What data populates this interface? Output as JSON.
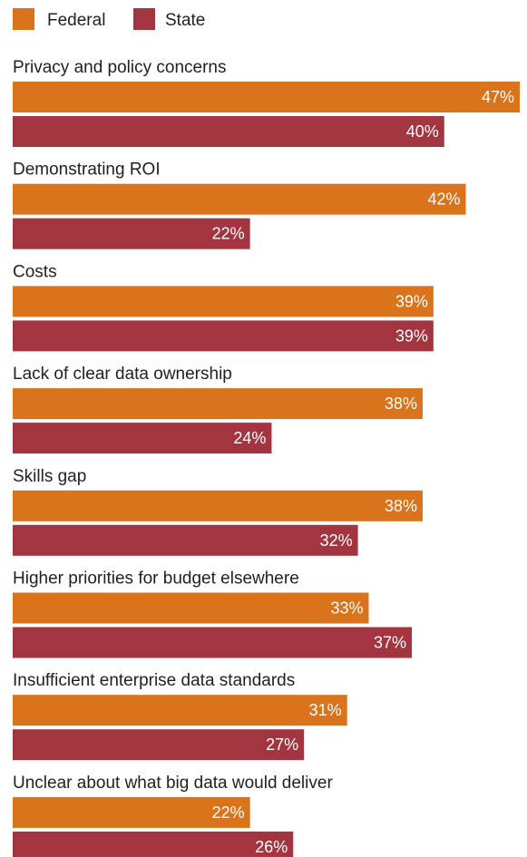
{
  "legend": {
    "federal": "Federal",
    "state": "State"
  },
  "colors": {
    "federal": "#d9731c",
    "state": "#a23540"
  },
  "chart_data": {
    "type": "bar",
    "orientation": "horizontal",
    "legend_position": "top-left",
    "grid": false,
    "xlim": [
      0,
      47
    ],
    "categories": [
      "Privacy and policy concerns",
      "Demonstrating ROI",
      "Costs",
      "Lack of clear data ownership",
      "Skills gap",
      "Higher priorities for budget elsewhere",
      "Insufficient enterprise data standards",
      "Unclear about what big data would deliver"
    ],
    "series": [
      {
        "name": "Federal",
        "values": [
          47,
          42,
          39,
          38,
          38,
          33,
          31,
          22
        ],
        "labels": [
          "47%",
          "42%",
          "39%",
          "38%",
          "38%",
          "33%",
          "31%",
          "22%"
        ]
      },
      {
        "name": "State",
        "values": [
          40,
          22,
          39,
          24,
          32,
          37,
          27,
          26
        ],
        "labels": [
          "40%",
          "22%",
          "39%",
          "24%",
          "32%",
          "37%",
          "27%",
          "26%"
        ]
      }
    ]
  }
}
